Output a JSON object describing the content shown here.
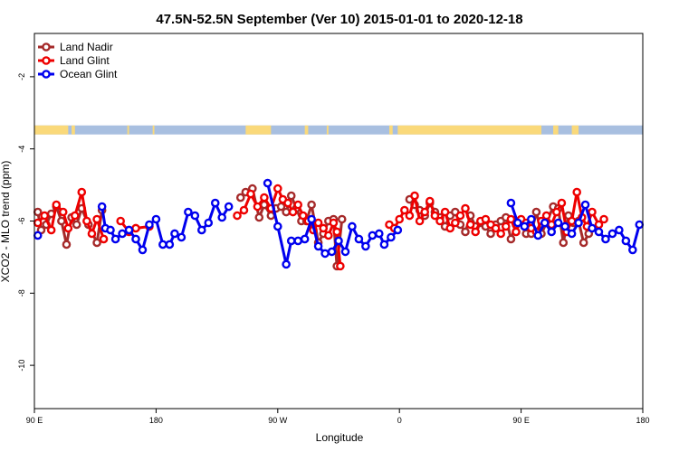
{
  "chart_data": {
    "type": "line",
    "title": "47.5N-52.5N September (Ver 10)   2015-01-01 to 2020-12-18",
    "xlabel": "Longitude",
    "ylabel": "XCO2 - MLO trend (ppm)",
    "xlim": [
      90,
      450
    ],
    "ylim": [
      -11.2,
      -0.8
    ],
    "x_ticks": [
      {
        "value": 90,
        "label": "90 E"
      },
      {
        "value": 162,
        "label": "180"
      },
      {
        "value": 234,
        "label": "90 W"
      },
      {
        "value": 306,
        "label": "0"
      },
      {
        "value": 378,
        "label": "90 E"
      },
      {
        "value": 450,
        "label": "180"
      }
    ],
    "y_ticks": [
      {
        "value": -2,
        "label": "-2"
      },
      {
        "value": -4,
        "label": "-4"
      },
      {
        "value": -6,
        "label": "-6"
      },
      {
        "value": -8,
        "label": "-8"
      },
      {
        "value": -10,
        "label": "-10"
      }
    ],
    "legend_position": "top-left",
    "land_mask_band": {
      "y_top": -3.35,
      "y_bottom": -3.6,
      "land_color": "#fad97a",
      "ocean_color": "#a8bfe0"
    },
    "series": [
      {
        "name": "Land Nadir",
        "color": "#a52a2a",
        "points": [
          [
            92,
            -5.75
          ],
          [
            94,
            -6.25
          ],
          [
            97,
            -6.1
          ],
          [
            100,
            -5.8
          ],
          [
            103,
            -5.6
          ],
          [
            106,
            -6.0
          ],
          [
            109,
            -6.65
          ],
          [
            112,
            -5.9
          ],
          [
            115,
            -6.1
          ],
          [
            118,
            -5.65
          ],
          [
            122,
            -6.1
          ],
          [
            127,
            -6.6
          ],
          [
            130,
            -5.7
          ],
          [
            212,
            -5.35
          ],
          [
            215,
            -5.2
          ],
          [
            219,
            -5.1
          ],
          [
            223,
            -5.9
          ],
          [
            226,
            -5.55
          ],
          [
            230,
            -5.85
          ],
          [
            233,
            -5.65
          ],
          [
            236,
            -5.6
          ],
          [
            239,
            -5.75
          ],
          [
            242,
            -5.3
          ],
          [
            245,
            -5.65
          ],
          [
            248,
            -6.0
          ],
          [
            251,
            -6.0
          ],
          [
            254,
            -5.55
          ],
          [
            258,
            -6.6
          ],
          [
            261,
            -6.35
          ],
          [
            264,
            -6.0
          ],
          [
            267,
            -5.95
          ],
          [
            269,
            -7.25
          ],
          [
            272,
            -5.95
          ],
          [
            312,
            -5.4
          ],
          [
            315,
            -5.55
          ],
          [
            318,
            -5.7
          ],
          [
            321,
            -5.85
          ],
          [
            324,
            -5.5
          ],
          [
            327,
            -5.75
          ],
          [
            330,
            -5.9
          ],
          [
            333,
            -6.15
          ],
          [
            336,
            -5.85
          ],
          [
            339,
            -5.75
          ],
          [
            342,
            -6.1
          ],
          [
            345,
            -6.3
          ],
          [
            348,
            -5.85
          ],
          [
            351,
            -6.15
          ],
          [
            354,
            -6.05
          ],
          [
            357,
            -6.15
          ],
          [
            360,
            -6.35
          ],
          [
            363,
            -6.1
          ],
          [
            366,
            -6.0
          ],
          [
            369,
            -5.9
          ],
          [
            372,
            -6.5
          ],
          [
            375,
            -6.1
          ],
          [
            378,
            -6.0
          ],
          [
            381,
            -6.35
          ],
          [
            384,
            -6.35
          ],
          [
            387,
            -5.75
          ],
          [
            390,
            -6.35
          ],
          [
            393,
            -6.05
          ],
          [
            397,
            -5.6
          ],
          [
            400,
            -5.65
          ],
          [
            403,
            -6.6
          ],
          [
            406,
            -5.85
          ],
          [
            409,
            -6.05
          ],
          [
            412,
            -6.0
          ],
          [
            415,
            -6.6
          ],
          [
            418,
            -6.35
          ]
        ]
      },
      {
        "name": "Land Glint",
        "color": "#ee0000",
        "points": [
          [
            92,
            -6.05
          ],
          [
            96,
            -5.85
          ],
          [
            100,
            -6.25
          ],
          [
            103,
            -5.55
          ],
          [
            107,
            -5.75
          ],
          [
            110,
            -6.2
          ],
          [
            114,
            -5.85
          ],
          [
            118,
            -5.2
          ],
          [
            121,
            -6.0
          ],
          [
            124,
            -6.35
          ],
          [
            127,
            -5.95
          ],
          [
            131,
            -6.5
          ],
          [
            141,
            -6.0
          ],
          [
            146,
            -6.3
          ],
          [
            150,
            -6.2
          ],
          [
            158,
            -6.15
          ],
          [
            210,
            -5.85
          ],
          [
            214,
            -5.7
          ],
          [
            218,
            -5.25
          ],
          [
            222,
            -5.6
          ],
          [
            226,
            -5.35
          ],
          [
            230,
            -5.65
          ],
          [
            234,
            -5.1
          ],
          [
            237,
            -5.4
          ],
          [
            240,
            -5.5
          ],
          [
            243,
            -5.75
          ],
          [
            246,
            -5.55
          ],
          [
            249,
            -5.85
          ],
          [
            252,
            -6.0
          ],
          [
            255,
            -6.25
          ],
          [
            258,
            -6.05
          ],
          [
            261,
            -6.2
          ],
          [
            264,
            -6.4
          ],
          [
            267,
            -6.05
          ],
          [
            269,
            -6.3
          ],
          [
            271,
            -7.25
          ],
          [
            300,
            -6.1
          ],
          [
            303,
            -6.2
          ],
          [
            306,
            -5.95
          ],
          [
            309,
            -5.7
          ],
          [
            312,
            -5.85
          ],
          [
            315,
            -5.3
          ],
          [
            318,
            -6.0
          ],
          [
            321,
            -5.75
          ],
          [
            324,
            -5.45
          ],
          [
            327,
            -5.85
          ],
          [
            330,
            -6.0
          ],
          [
            333,
            -5.75
          ],
          [
            336,
            -6.2
          ],
          [
            339,
            -6.05
          ],
          [
            342,
            -5.85
          ],
          [
            345,
            -5.65
          ],
          [
            348,
            -6.1
          ],
          [
            351,
            -6.3
          ],
          [
            354,
            -6.0
          ],
          [
            357,
            -5.95
          ],
          [
            360,
            -6.1
          ],
          [
            363,
            -6.2
          ],
          [
            366,
            -6.35
          ],
          [
            369,
            -6.15
          ],
          [
            372,
            -5.95
          ],
          [
            375,
            -6.3
          ],
          [
            378,
            -5.95
          ],
          [
            381,
            -6.05
          ],
          [
            384,
            -6.2
          ],
          [
            387,
            -6.3
          ],
          [
            390,
            -6.0
          ],
          [
            393,
            -5.85
          ],
          [
            396,
            -6.1
          ],
          [
            399,
            -5.75
          ],
          [
            402,
            -5.5
          ],
          [
            405,
            -6.3
          ],
          [
            408,
            -6.0
          ],
          [
            411,
            -5.2
          ],
          [
            414,
            -5.9
          ],
          [
            417,
            -6.15
          ],
          [
            420,
            -5.75
          ],
          [
            424,
            -6.1
          ],
          [
            427,
            -5.95
          ]
        ]
      },
      {
        "name": "Ocean Glint",
        "color": "#0000ee",
        "points": [
          [
            92,
            -6.4
          ],
          [
            130,
            -5.6
          ],
          [
            132,
            -6.2
          ],
          [
            135,
            -6.25
          ],
          [
            138,
            -6.5
          ],
          [
            142,
            -6.35
          ],
          [
            146,
            -6.25
          ],
          [
            150,
            -6.5
          ],
          [
            154,
            -6.8
          ],
          [
            158,
            -6.1
          ],
          [
            162,
            -5.95
          ],
          [
            166,
            -6.65
          ],
          [
            170,
            -6.65
          ],
          [
            173,
            -6.35
          ],
          [
            177,
            -6.45
          ],
          [
            181,
            -5.75
          ],
          [
            185,
            -5.85
          ],
          [
            189,
            -6.25
          ],
          [
            193,
            -6.05
          ],
          [
            197,
            -5.5
          ],
          [
            201,
            -5.9
          ],
          [
            205,
            -5.6
          ],
          [
            228,
            -4.95
          ],
          [
            234,
            -6.15
          ],
          [
            239,
            -7.2
          ],
          [
            242,
            -6.55
          ],
          [
            246,
            -6.55
          ],
          [
            250,
            -6.5
          ],
          [
            254,
            -5.95
          ],
          [
            258,
            -6.7
          ],
          [
            262,
            -6.9
          ],
          [
            266,
            -6.85
          ],
          [
            270,
            -6.55
          ],
          [
            274,
            -6.85
          ],
          [
            278,
            -6.15
          ],
          [
            282,
            -6.5
          ],
          [
            286,
            -6.7
          ],
          [
            290,
            -6.4
          ],
          [
            294,
            -6.35
          ],
          [
            297,
            -6.65
          ],
          [
            301,
            -6.45
          ],
          [
            305,
            -6.25
          ],
          [
            372,
            -5.5
          ],
          [
            376,
            -6.05
          ],
          [
            380,
            -6.15
          ],
          [
            384,
            -5.95
          ],
          [
            388,
            -6.4
          ],
          [
            392,
            -6.05
          ],
          [
            396,
            -6.3
          ],
          [
            400,
            -6.05
          ],
          [
            404,
            -6.15
          ],
          [
            408,
            -6.35
          ],
          [
            412,
            -6.05
          ],
          [
            416,
            -5.55
          ],
          [
            420,
            -6.2
          ],
          [
            424,
            -6.3
          ],
          [
            428,
            -6.5
          ],
          [
            432,
            -6.35
          ],
          [
            436,
            -6.25
          ],
          [
            440,
            -6.55
          ],
          [
            444,
            -6.8
          ],
          [
            448,
            -6.1
          ]
        ]
      }
    ]
  }
}
